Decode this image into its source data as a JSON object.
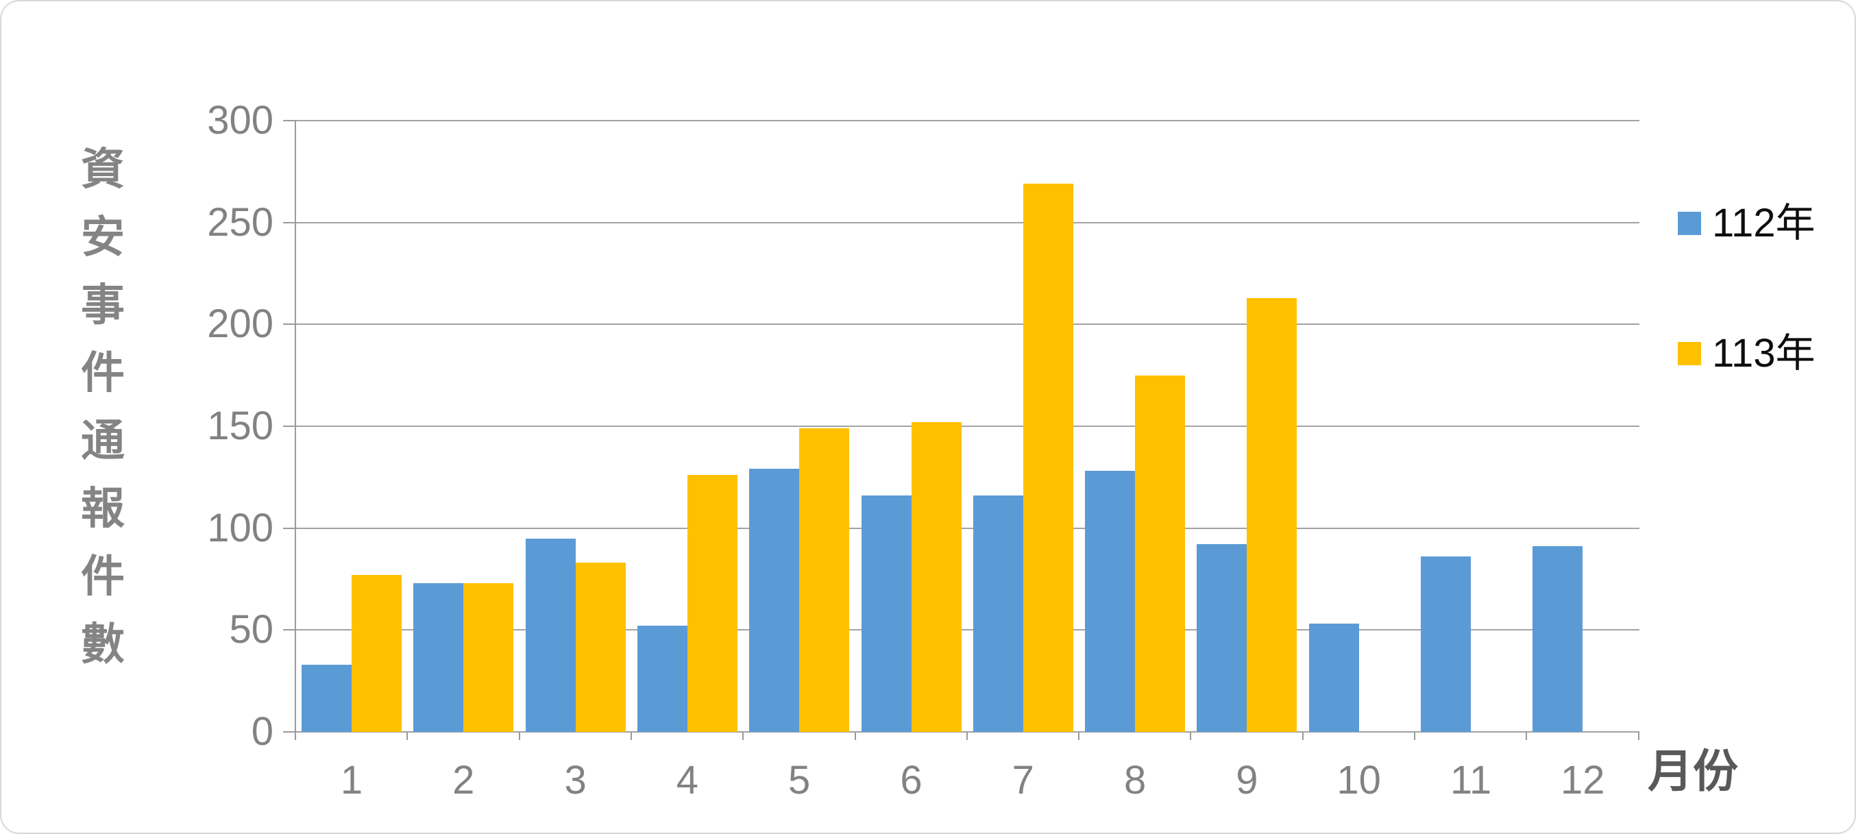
{
  "chart_data": {
    "type": "bar",
    "title": "",
    "categories": [
      "1",
      "2",
      "3",
      "4",
      "5",
      "6",
      "7",
      "8",
      "9",
      "10",
      "11",
      "12"
    ],
    "series": [
      {
        "name": "112年",
        "color": "#5B9BD5",
        "values": [
          33,
          73,
          95,
          52,
          129,
          116,
          116,
          128,
          92,
          53,
          86,
          91
        ]
      },
      {
        "name": "113年",
        "color": "#FFC000",
        "values": [
          77,
          73,
          83,
          126,
          149,
          152,
          269,
          175,
          213,
          null,
          null,
          null
        ]
      }
    ],
    "xlabel": "月份",
    "ylabel": "資安事件通報件數",
    "ylim": [
      0,
      300
    ],
    "yticks": [
      0,
      50,
      100,
      150,
      200,
      250,
      300
    ],
    "grid": true,
    "legend_position": "right",
    "bar_gap_within_pair": 0
  },
  "legend": {
    "items": [
      {
        "label": "112年",
        "color": "#5B9BD5"
      },
      {
        "label": "113年",
        "color": "#FFC000"
      }
    ]
  },
  "colors": {
    "series_112": "#5B9BD5",
    "series_113": "#FFC000",
    "gridline": "#a3a3a3",
    "tick_text": "#828282",
    "y_axis_title_text": "#848484",
    "x_axis_title_text": "#595959",
    "legend_text": "#0d0d0d",
    "background": "#ffffff"
  }
}
